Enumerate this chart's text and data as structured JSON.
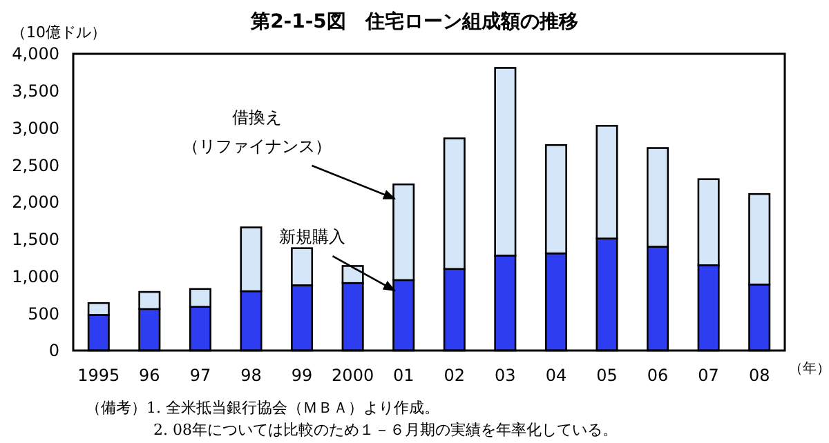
{
  "chart_data": {
    "type": "bar",
    "stacked": true,
    "title": "第2-1-5図　住宅ローン組成額の推移",
    "ylabel": "（10億ドル）",
    "xlabel": "（年）",
    "categories": [
      "1995",
      "96",
      "97",
      "98",
      "99",
      "2000",
      "01",
      "02",
      "03",
      "04",
      "05",
      "06",
      "07",
      "08"
    ],
    "series": [
      {
        "name": "新規購入",
        "color": "#2f3df0",
        "values": [
          480,
          560,
          590,
          800,
          880,
          910,
          950,
          1100,
          1280,
          1310,
          1510,
          1400,
          1150,
          890
        ]
      },
      {
        "name": "借換え（リファイナンス）",
        "color": "#d4e6f8",
        "values": [
          160,
          230,
          240,
          860,
          500,
          230,
          1290,
          1760,
          2530,
          1460,
          1520,
          1330,
          1160,
          1220
        ]
      }
    ],
    "ylim": [
      0,
      4000
    ],
    "yticks": [
      0,
      {
        "value": 500,
        "label": "500"
      },
      {
        "value": 1000,
        "label": "1,000"
      },
      {
        "value": 1500,
        "label": "1,500"
      },
      {
        "value": 2000,
        "label": "2,000"
      },
      {
        "value": 2500,
        "label": "2,500"
      },
      {
        "value": 3000,
        "label": "3,000"
      },
      {
        "value": 3500,
        "label": "3,500"
      },
      {
        "value": 4000,
        "label": "4,000"
      }
    ],
    "grid": false,
    "annotations": [
      "（備考）1.  全米抵当銀行協会（ＭＢＡ）より作成。",
      "2.  08年については比較のため１－６月期の実績を年率化している。"
    ]
  }
}
